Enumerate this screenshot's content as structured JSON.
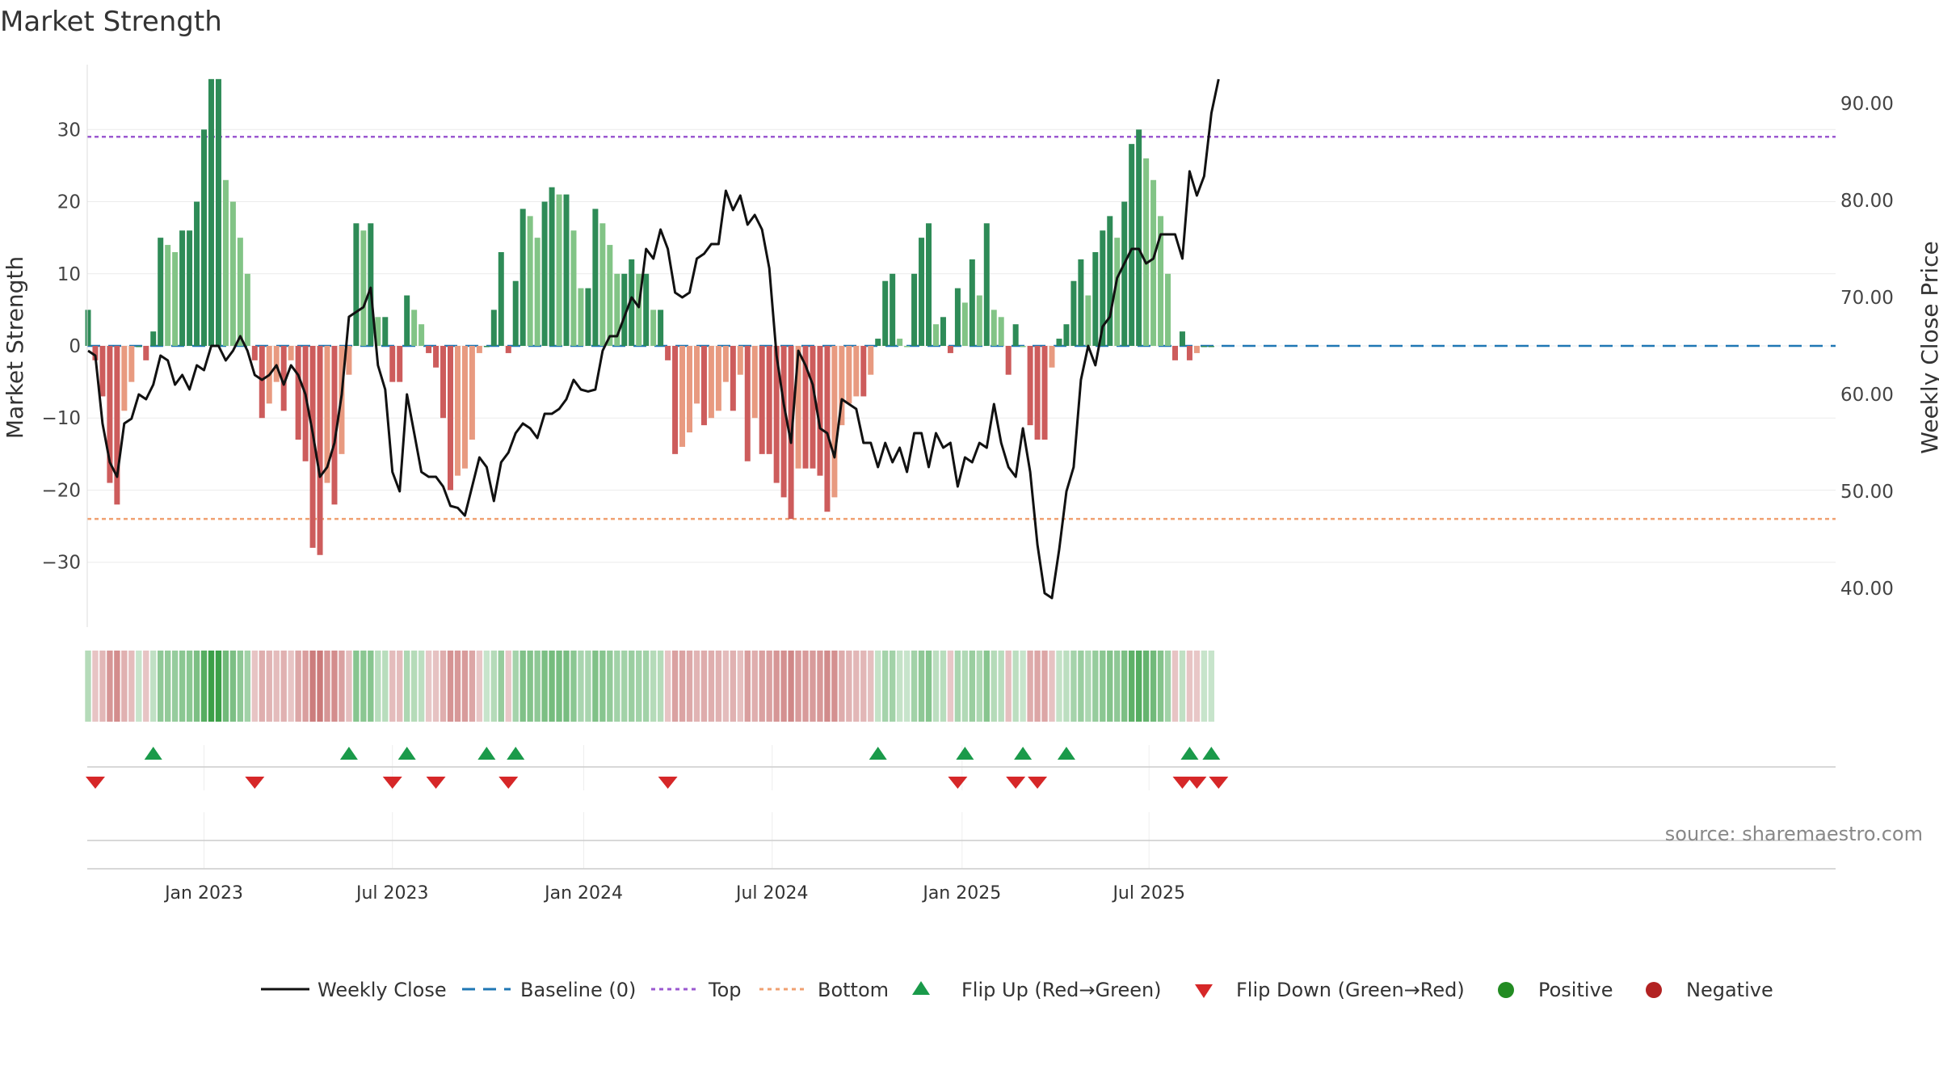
{
  "chart_data": {
    "type": "bar",
    "title": "Market Strength",
    "ylabel": "Market Strength",
    "y2label": "Weekly Close Price",
    "ylim": [
      -39,
      39
    ],
    "y2lim": [
      36,
      94
    ],
    "yticks": [
      -30,
      -20,
      -10,
      0,
      10,
      20,
      30
    ],
    "yticklabels": [
      "−30",
      "−20",
      "−10",
      "0",
      "10",
      "20",
      "30"
    ],
    "y2ticks": [
      40,
      50,
      60,
      70,
      80,
      90
    ],
    "y2ticklabels": [
      "40.00",
      "50.00",
      "60.00",
      "70.00",
      "80.00",
      "90.00"
    ],
    "top_level": 29,
    "bottom_level": -24,
    "week_start": "2022-09-12",
    "xticks": [
      {
        "label": "Jan 2023",
        "week": 16
      },
      {
        "label": "Jul 2023",
        "week": 42
      },
      {
        "label": "Jan 2024",
        "week": 68.4
      },
      {
        "label": "Jul 2024",
        "week": 94.4
      },
      {
        "label": "Jan 2025",
        "week": 120.6
      },
      {
        "label": "Jul 2025",
        "week": 146.4
      }
    ],
    "strength": [
      5,
      -2,
      -7,
      -19,
      -22,
      -9,
      -5,
      0,
      -2,
      2,
      15,
      14,
      13,
      16,
      16,
      20,
      30,
      37,
      37,
      23,
      20,
      15,
      10,
      -2,
      -10,
      -8,
      -5,
      -9,
      -2,
      -13,
      -16,
      -28,
      -29,
      -19,
      -22,
      -15,
      -4,
      17,
      16,
      17,
      4,
      4,
      -5,
      -5,
      7,
      5,
      3,
      -1,
      -3,
      -10,
      -20,
      -18,
      -17,
      -13,
      -1,
      0,
      5,
      13,
      -1,
      9,
      19,
      18,
      15,
      20,
      22,
      21,
      21,
      16,
      8,
      8,
      19,
      17,
      14,
      10,
      10,
      12,
      10,
      10,
      5,
      5,
      -2,
      -15,
      -14,
      -12,
      -8,
      -11,
      -10,
      -9,
      -5,
      -9,
      -4,
      -16,
      -10,
      -15,
      -15,
      -19,
      -21,
      -24,
      -17,
      -17,
      -17,
      -18,
      -23,
      -21,
      -11,
      -8,
      -7,
      -7,
      -4,
      1,
      9,
      10,
      1,
      0,
      10,
      15,
      17,
      3,
      4,
      -1,
      8,
      6,
      12,
      7,
      17,
      5,
      4,
      -4,
      3,
      0,
      -11,
      -13,
      -13,
      -3,
      1,
      3,
      9,
      12,
      7,
      13,
      16,
      18,
      15,
      20,
      28,
      30,
      26,
      23,
      18,
      10,
      -2,
      2,
      -2,
      -1,
      0,
      0
    ],
    "flip_up": [
      9,
      36,
      44,
      55,
      59,
      109,
      121,
      129,
      135,
      152,
      155
    ],
    "flip_down": [
      1,
      23,
      42,
      48,
      58,
      80,
      120,
      128,
      131,
      151,
      153,
      156
    ],
    "close_points": [
      [
        0,
        64.5
      ],
      [
        1,
        64
      ],
      [
        2,
        57
      ],
      [
        3,
        53
      ],
      [
        4,
        51.5
      ],
      [
        5,
        57
      ],
      [
        6,
        57.5
      ],
      [
        7,
        60
      ],
      [
        8,
        59.5
      ],
      [
        9,
        61
      ],
      [
        10,
        64
      ],
      [
        11,
        63.5
      ],
      [
        12,
        61
      ],
      [
        13,
        62
      ],
      [
        14,
        60.5
      ],
      [
        15,
        63
      ],
      [
        16,
        62.5
      ],
      [
        17,
        65
      ],
      [
        18,
        65
      ],
      [
        19,
        63.5
      ],
      [
        20,
        64.5
      ],
      [
        21,
        66
      ],
      [
        22,
        64.5
      ],
      [
        23,
        62
      ],
      [
        24,
        61.5
      ],
      [
        25,
        62
      ],
      [
        26,
        63
      ],
      [
        27,
        61
      ],
      [
        28,
        63
      ],
      [
        29,
        62
      ],
      [
        30,
        60
      ],
      [
        31,
        56
      ],
      [
        32,
        51.5
      ],
      [
        33,
        52.5
      ],
      [
        34,
        55
      ],
      [
        35,
        60
      ],
      [
        36,
        68
      ],
      [
        37,
        68.5
      ],
      [
        38,
        69
      ],
      [
        39,
        71
      ],
      [
        40,
        63
      ],
      [
        41,
        60.5
      ],
      [
        42,
        52
      ],
      [
        43,
        50
      ],
      [
        44,
        60
      ],
      [
        45,
        56
      ],
      [
        46,
        52
      ],
      [
        47,
        51.5
      ],
      [
        48,
        51.5
      ],
      [
        49,
        50.5
      ],
      [
        50,
        48.5
      ],
      [
        51,
        48.3
      ],
      [
        52,
        47.5
      ],
      [
        53,
        50.5
      ],
      [
        54,
        53.5
      ],
      [
        55,
        52.5
      ],
      [
        56,
        49
      ],
      [
        57,
        53
      ],
      [
        58,
        54
      ],
      [
        59,
        56
      ],
      [
        60,
        57
      ],
      [
        61,
        56.5
      ],
      [
        62,
        55.5
      ],
      [
        63,
        58
      ],
      [
        64,
        58
      ],
      [
        65,
        58.5
      ],
      [
        66,
        59.5
      ],
      [
        67,
        61.5
      ],
      [
        68,
        60.5
      ],
      [
        69,
        60.3
      ],
      [
        70,
        60.5
      ],
      [
        71,
        64.5
      ],
      [
        72,
        66
      ],
      [
        73,
        66
      ],
      [
        74,
        68
      ],
      [
        75,
        70
      ],
      [
        76,
        69
      ],
      [
        77,
        75
      ],
      [
        78,
        74
      ],
      [
        79,
        77
      ],
      [
        80,
        75
      ],
      [
        81,
        70.5
      ],
      [
        82,
        70
      ],
      [
        83,
        70.5
      ],
      [
        84,
        74
      ],
      [
        85,
        74.5
      ],
      [
        86,
        75.5
      ],
      [
        87,
        75.5
      ],
      [
        88,
        81
      ],
      [
        89,
        79
      ],
      [
        90,
        80.5
      ],
      [
        91,
        77.5
      ],
      [
        92,
        78.5
      ],
      [
        93,
        77
      ],
      [
        94,
        73
      ],
      [
        95,
        64
      ],
      [
        96,
        59
      ],
      [
        97,
        55
      ],
      [
        98,
        64.5
      ],
      [
        99,
        63
      ],
      [
        100,
        61
      ],
      [
        101,
        56.5
      ],
      [
        102,
        56
      ],
      [
        103,
        53.5
      ],
      [
        104,
        59.5
      ],
      [
        105,
        59
      ],
      [
        106,
        58.5
      ],
      [
        107,
        55
      ],
      [
        108,
        55
      ],
      [
        109,
        52.5
      ],
      [
        110,
        55
      ],
      [
        111,
        53
      ],
      [
        112,
        54.5
      ],
      [
        113,
        52
      ],
      [
        114,
        56
      ],
      [
        115,
        56
      ],
      [
        116,
        52.5
      ],
      [
        117,
        56
      ],
      [
        118,
        54.5
      ],
      [
        119,
        55
      ],
      [
        120,
        50.5
      ],
      [
        121,
        53.5
      ],
      [
        122,
        53
      ],
      [
        123,
        55
      ],
      [
        124,
        54.5
      ],
      [
        125,
        59
      ],
      [
        126,
        55
      ],
      [
        127,
        52.5
      ],
      [
        128,
        51.5
      ],
      [
        129,
        56.5
      ],
      [
        130,
        52
      ],
      [
        131,
        44.5
      ],
      [
        132,
        39.5
      ],
      [
        133,
        39
      ],
      [
        134,
        44
      ],
      [
        135,
        50
      ],
      [
        136,
        52.5
      ],
      [
        137,
        61.5
      ],
      [
        138,
        65
      ],
      [
        139,
        63
      ],
      [
        140,
        67
      ],
      [
        141,
        68
      ],
      [
        142,
        72
      ],
      [
        143,
        73.5
      ],
      [
        144,
        75
      ],
      [
        145,
        75
      ],
      [
        146,
        73.5
      ],
      [
        147,
        74
      ],
      [
        148,
        76.5
      ],
      [
        149,
        76.5
      ],
      [
        150,
        76.5
      ],
      [
        151,
        74
      ],
      [
        152,
        83
      ],
      [
        153,
        80.5
      ],
      [
        154,
        82.5
      ],
      [
        155,
        89
      ],
      [
        156,
        92.5
      ]
    ],
    "legend": [
      "Weekly Close",
      "Baseline (0)",
      "Top",
      "Bottom",
      "Flip Up (Red→Green)",
      "Flip Down (Green→Red)",
      "Positive",
      "Negative"
    ],
    "source": "source: sharemaestro.com",
    "colors": {
      "pos_strong": "#2e8b57",
      "pos_light": "#82c486",
      "neg_strong": "#cd5c5c",
      "neg_light": "#e89a80",
      "close": "#111111",
      "baseline": "#1f77b4",
      "top": "#9b59d0",
      "bottom": "#f0a070",
      "flip_up": "#1a9a4a",
      "flip_down": "#d62728",
      "positive_dot": "#228b22",
      "negative_dot": "#b22222"
    }
  }
}
